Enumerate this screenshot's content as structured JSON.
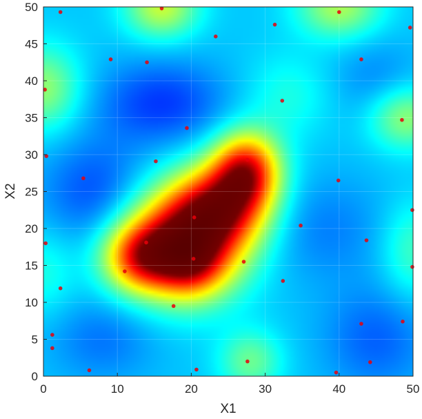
{
  "chart_data": {
    "type": "heatmap",
    "title": "",
    "xlabel": "X1",
    "ylabel": "X2",
    "xlim": [
      0,
      50
    ],
    "ylim": [
      0,
      50
    ],
    "xticks": [
      0,
      10,
      20,
      30,
      40,
      50
    ],
    "yticks": [
      0,
      5,
      10,
      15,
      20,
      25,
      30,
      35,
      40,
      45,
      50
    ],
    "grid": true,
    "colormap": "jet",
    "surface": {
      "description_units": "data units",
      "baseline": 0.32,
      "blobs": [
        {
          "x": 19,
          "y": 18,
          "sx": 5.5,
          "sy": 5,
          "a": 0.62
        },
        {
          "x": 13,
          "y": 16,
          "sx": 3.5,
          "sy": 3.2,
          "a": 0.35
        },
        {
          "x": 27.5,
          "y": 28,
          "sx": 3.2,
          "sy": 3.6,
          "a": 0.5
        },
        {
          "x": 24,
          "y": 23,
          "sx": 4.5,
          "sy": 4,
          "a": 0.45
        },
        {
          "x": 20,
          "y": 15,
          "sx": 3,
          "sy": 3,
          "a": 0.2
        },
        {
          "x": 16,
          "y": 50,
          "sx": 3.5,
          "sy": 3,
          "a": 0.25
        },
        {
          "x": 40,
          "y": 50,
          "sx": 4,
          "sy": 3,
          "a": 0.22
        },
        {
          "x": 0,
          "y": 39,
          "sx": 3.5,
          "sy": 4,
          "a": 0.2
        },
        {
          "x": 49,
          "y": 35,
          "sx": 3.5,
          "sy": 3,
          "a": 0.2
        },
        {
          "x": 28,
          "y": 2,
          "sx": 3,
          "sy": 3,
          "a": 0.16
        },
        {
          "x": 50,
          "y": 17,
          "sx": 3,
          "sy": 4.5,
          "a": 0.12
        },
        {
          "x": 33,
          "y": 38,
          "sx": 4,
          "sy": 4,
          "a": 0.08
        },
        {
          "x": 0,
          "y": 14,
          "sx": 3,
          "sy": 4,
          "a": 0.08
        },
        {
          "x": 16,
          "y": 37,
          "sx": 6,
          "sy": 4,
          "a": -0.14
        },
        {
          "x": 7,
          "y": 25,
          "sx": 5,
          "sy": 5,
          "a": -0.12
        },
        {
          "x": 38,
          "y": 20,
          "sx": 6,
          "sy": 5,
          "a": -0.07
        },
        {
          "x": 45,
          "y": 5,
          "sx": 5,
          "sy": 5,
          "a": -0.1
        },
        {
          "x": 8,
          "y": 5,
          "sx": 5,
          "sy": 4,
          "a": -0.08
        },
        {
          "x": 45,
          "y": 40,
          "sx": 4,
          "sy": 4,
          "a": -0.06
        }
      ]
    },
    "points": [
      {
        "x": 2.3,
        "y": 49.3
      },
      {
        "x": 16.0,
        "y": 49.8
      },
      {
        "x": 23.3,
        "y": 46.0
      },
      {
        "x": 31.3,
        "y": 47.6
      },
      {
        "x": 40.0,
        "y": 49.3
      },
      {
        "x": 49.6,
        "y": 47.2
      },
      {
        "x": 9.1,
        "y": 42.9
      },
      {
        "x": 14.0,
        "y": 42.5
      },
      {
        "x": 43.0,
        "y": 42.9
      },
      {
        "x": 0.2,
        "y": 38.8
      },
      {
        "x": 32.3,
        "y": 37.3
      },
      {
        "x": 19.4,
        "y": 33.6
      },
      {
        "x": 48.5,
        "y": 34.7
      },
      {
        "x": 0.4,
        "y": 29.8
      },
      {
        "x": 15.2,
        "y": 29.1
      },
      {
        "x": 27.6,
        "y": 29.3
      },
      {
        "x": 5.4,
        "y": 26.8
      },
      {
        "x": 39.9,
        "y": 26.5
      },
      {
        "x": 49.9,
        "y": 22.5
      },
      {
        "x": 20.4,
        "y": 21.5
      },
      {
        "x": 34.8,
        "y": 20.4
      },
      {
        "x": 43.7,
        "y": 18.4
      },
      {
        "x": 0.3,
        "y": 18.0
      },
      {
        "x": 13.9,
        "y": 18.1
      },
      {
        "x": 20.3,
        "y": 15.9
      },
      {
        "x": 27.1,
        "y": 15.5
      },
      {
        "x": 49.9,
        "y": 14.8
      },
      {
        "x": 11.0,
        "y": 14.2
      },
      {
        "x": 32.4,
        "y": 12.9
      },
      {
        "x": 2.3,
        "y": 11.9
      },
      {
        "x": 17.6,
        "y": 9.5
      },
      {
        "x": 48.6,
        "y": 7.4
      },
      {
        "x": 43.0,
        "y": 7.1
      },
      {
        "x": 1.2,
        "y": 5.6
      },
      {
        "x": 1.2,
        "y": 3.8
      },
      {
        "x": 27.6,
        "y": 2.0
      },
      {
        "x": 44.2,
        "y": 1.9
      },
      {
        "x": 6.2,
        "y": 0.8
      },
      {
        "x": 20.7,
        "y": 0.9
      },
      {
        "x": 39.6,
        "y": 0.5
      }
    ],
    "marker_color": "#e8000b"
  }
}
